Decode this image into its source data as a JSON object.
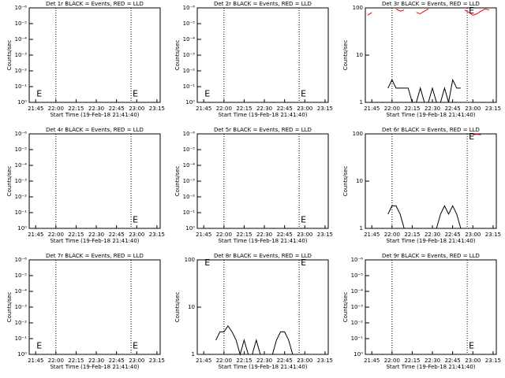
{
  "chart_data": [
    {
      "type": "line",
      "title": "Det 1r BLACK = Events, RED = LLD",
      "ylabel": "Counts/sec",
      "xlabel": "Start Time (19-Feb-18 21:41:40)",
      "xlim": [
        21.67,
        23.29
      ],
      "xticks": [
        {
          "value": 21.75,
          "label": "21:45"
        },
        {
          "value": 22,
          "label": "22:00"
        },
        {
          "value": 22.25,
          "label": "22:15"
        },
        {
          "value": 22.5,
          "label": "22:30"
        },
        {
          "value": 22.75,
          "label": "22:45"
        },
        {
          "value": 23,
          "label": "23:00"
        },
        {
          "value": 23.25,
          "label": "23:15"
        }
      ],
      "log_y": true,
      "ylim": [
        1,
        1e-06
      ],
      "yticks": [
        {
          "value": 1,
          "label": "10⁰"
        },
        {
          "value": 0.1,
          "label": "10⁻¹"
        },
        {
          "value": 0.01,
          "label": "10⁻²"
        },
        {
          "value": 0.001,
          "label": "10⁻³"
        },
        {
          "value": 0.0001,
          "label": "10⁻⁴"
        },
        {
          "value": 1e-05,
          "label": "10⁻⁵"
        },
        {
          "value": 1e-06,
          "label": "10⁻⁶"
        }
      ],
      "vlines": [
        22,
        22.93
      ],
      "annotations": [
        {
          "text": "E",
          "x": 21.76,
          "y": 0.3
        },
        {
          "text": "E",
          "x": 22.95,
          "y": 0.3
        }
      ]
    },
    {
      "type": "line",
      "title": "Det 2r BLACK = Events, RED = LLD",
      "ylabel": "Counts/sec",
      "xlabel": "Start Time (19-Feb-18 21:41:40)",
      "xlim": [
        21.67,
        23.29
      ],
      "xticks": [
        {
          "value": 21.75,
          "label": "21:45"
        },
        {
          "value": 22,
          "label": "22:00"
        },
        {
          "value": 22.25,
          "label": "22:15"
        },
        {
          "value": 22.5,
          "label": "22:30"
        },
        {
          "value": 22.75,
          "label": "22:45"
        },
        {
          "value": 23,
          "label": "23:00"
        },
        {
          "value": 23.25,
          "label": "23:15"
        }
      ],
      "log_y": true,
      "ylim": [
        1,
        1e-06
      ],
      "yticks": [
        {
          "value": 1,
          "label": "10⁰"
        },
        {
          "value": 0.1,
          "label": "10⁻¹"
        },
        {
          "value": 0.01,
          "label": "10⁻²"
        },
        {
          "value": 0.001,
          "label": "10⁻³"
        },
        {
          "value": 0.0001,
          "label": "10⁻⁴"
        },
        {
          "value": 1e-05,
          "label": "10⁻⁵"
        },
        {
          "value": 1e-06,
          "label": "10⁻⁶"
        }
      ],
      "vlines": [
        22,
        22.93
      ],
      "annotations": [
        {
          "text": "E",
          "x": 21.76,
          "y": 0.3
        },
        {
          "text": "E",
          "x": 22.95,
          "y": 0.3
        }
      ]
    },
    {
      "type": "line",
      "title": "Det 3r BLACK = Events, RED = LLD",
      "ylabel": "Counts/sec",
      "xlabel": "Start Time (19-Feb-18 21:41:40)",
      "xlim": [
        21.67,
        23.29
      ],
      "xticks": [
        {
          "value": 21.75,
          "label": "21:45"
        },
        {
          "value": 22,
          "label": "22:00"
        },
        {
          "value": 22.25,
          "label": "22:15"
        },
        {
          "value": 22.5,
          "label": "22:30"
        },
        {
          "value": 22.75,
          "label": "22:45"
        },
        {
          "value": 23,
          "label": "23:00"
        },
        {
          "value": 23.25,
          "label": "23:15"
        }
      ],
      "log_y": true,
      "ylim": [
        1,
        100
      ],
      "yticks": [
        1,
        10,
        100
      ],
      "vlines": [
        22,
        22.93
      ],
      "annotations": [
        {
          "text": "E",
          "x": 22.95,
          "y": 85
        }
      ],
      "x": [
        21.7,
        21.75,
        21.8,
        21.85,
        21.9,
        21.95,
        22,
        22.05,
        22.1,
        22.15,
        22.2,
        22.25,
        22.3,
        22.35,
        22.4,
        22.45,
        22.5,
        22.55,
        22.6,
        22.65,
        22.7,
        22.75,
        22.8,
        22.85,
        22.9,
        22.95,
        23,
        23.05,
        23.1,
        23.15,
        23.2,
        23.25
      ],
      "series": [
        {
          "name": "Events",
          "color": "#000000",
          "values": [
            null,
            null,
            null,
            null,
            null,
            2,
            3,
            2,
            2,
            2,
            2,
            1,
            1,
            2,
            1,
            1,
            2,
            1,
            1,
            2,
            1,
            3,
            2,
            2,
            null,
            null,
            null,
            null,
            null,
            null,
            null,
            null
          ]
        },
        {
          "name": "LLD",
          "color": "#ff0000",
          "values": [
            70,
            80,
            null,
            null,
            null,
            null,
            null,
            95,
            85,
            90,
            null,
            null,
            80,
            75,
            85,
            95,
            null,
            null,
            null,
            null,
            null,
            null,
            null,
            null,
            90,
            80,
            70,
            75,
            85,
            95,
            90,
            null
          ]
        }
      ]
    },
    {
      "type": "line",
      "title": "Det 4r BLACK = Events, RED = LLD",
      "ylabel": "Counts/sec",
      "xlabel": "Start Time (19-Feb-18 21:41:40)",
      "xlim": [
        21.67,
        23.29
      ],
      "xticks": [
        {
          "value": 21.75,
          "label": "21:45"
        },
        {
          "value": 22,
          "label": "22:00"
        },
        {
          "value": 22.25,
          "label": "22:15"
        },
        {
          "value": 22.5,
          "label": "22:30"
        },
        {
          "value": 22.75,
          "label": "22:45"
        },
        {
          "value": 23,
          "label": "23:00"
        },
        {
          "value": 23.25,
          "label": "23:15"
        }
      ],
      "log_y": true,
      "ylim": [
        1,
        1e-06
      ],
      "yticks": [
        {
          "value": 1,
          "label": "10⁰"
        },
        {
          "value": 0.1,
          "label": "10⁻¹"
        },
        {
          "value": 0.01,
          "label": "10⁻²"
        },
        {
          "value": 0.001,
          "label": "10⁻³"
        },
        {
          "value": 0.0001,
          "label": "10⁻⁴"
        },
        {
          "value": 1e-05,
          "label": "10⁻⁵"
        },
        {
          "value": 1e-06,
          "label": "10⁻⁶"
        }
      ],
      "vlines": [
        22,
        22.93
      ],
      "annotations": [
        {
          "text": "E",
          "x": 22.95,
          "y": 0.3
        }
      ]
    },
    {
      "type": "line",
      "title": "Det 5r BLACK = Events, RED = LLD",
      "ylabel": "Counts/sec",
      "xlabel": "Start Time (19-Feb-18 21:41:40)",
      "xlim": [
        21.67,
        23.29
      ],
      "xticks": [
        {
          "value": 21.75,
          "label": "21:45"
        },
        {
          "value": 22,
          "label": "22:00"
        },
        {
          "value": 22.25,
          "label": "22:15"
        },
        {
          "value": 22.5,
          "label": "22:30"
        },
        {
          "value": 22.75,
          "label": "22:45"
        },
        {
          "value": 23,
          "label": "23:00"
        },
        {
          "value": 23.25,
          "label": "23:15"
        }
      ],
      "log_y": true,
      "ylim": [
        1,
        1e-06
      ],
      "yticks": [
        {
          "value": 1,
          "label": "10⁰"
        },
        {
          "value": 0.1,
          "label": "10⁻¹"
        },
        {
          "value": 0.01,
          "label": "10⁻²"
        },
        {
          "value": 0.001,
          "label": "10⁻³"
        },
        {
          "value": 0.0001,
          "label": "10⁻⁴"
        },
        {
          "value": 1e-05,
          "label": "10⁻⁵"
        },
        {
          "value": 1e-06,
          "label": "10⁻⁶"
        }
      ],
      "vlines": [
        22,
        22.93
      ],
      "annotations": [
        {
          "text": "E",
          "x": 22.95,
          "y": 0.3
        }
      ]
    },
    {
      "type": "line",
      "title": "Det 6r BLACK = Events, RED = LLD",
      "ylabel": "Counts/sec",
      "xlabel": "Start Time (19-Feb-18 21:41:40)",
      "xlim": [
        21.67,
        23.29
      ],
      "xticks": [
        {
          "value": 21.75,
          "label": "21:45"
        },
        {
          "value": 22,
          "label": "22:00"
        },
        {
          "value": 22.25,
          "label": "22:15"
        },
        {
          "value": 22.5,
          "label": "22:30"
        },
        {
          "value": 22.75,
          "label": "22:45"
        },
        {
          "value": 23,
          "label": "23:00"
        },
        {
          "value": 23.25,
          "label": "23:15"
        }
      ],
      "log_y": true,
      "ylim": [
        1,
        100
      ],
      "yticks": [
        1,
        10,
        100
      ],
      "vlines": [
        22,
        22.93
      ],
      "annotations": [
        {
          "text": "E",
          "x": 22.95,
          "y": 85
        }
      ],
      "x": [
        21.7,
        21.75,
        21.8,
        21.85,
        21.9,
        21.95,
        22,
        22.05,
        22.1,
        22.15,
        22.2,
        22.25,
        22.3,
        22.35,
        22.4,
        22.45,
        22.5,
        22.55,
        22.6,
        22.65,
        22.7,
        22.75,
        22.8,
        22.85,
        22.9,
        22.95,
        23,
        23.05,
        23.1,
        23.15,
        23.2,
        23.25
      ],
      "series": [
        {
          "name": "Events",
          "color": "#000000",
          "values": [
            null,
            null,
            null,
            null,
            null,
            2,
            3,
            3,
            2,
            1,
            1,
            1,
            1,
            1,
            1,
            1,
            1,
            1,
            2,
            3,
            2,
            3,
            2,
            1,
            null,
            null,
            null,
            null,
            null,
            null,
            null,
            null
          ]
        },
        {
          "name": "LLD",
          "color": "#ff0000",
          "values": [
            null,
            null,
            null,
            null,
            null,
            null,
            null,
            null,
            null,
            null,
            null,
            null,
            null,
            null,
            null,
            null,
            null,
            null,
            null,
            null,
            null,
            null,
            null,
            null,
            null,
            null,
            95,
            98,
            95,
            null,
            null,
            null
          ]
        }
      ]
    },
    {
      "type": "line",
      "title": "Det 7r BLACK = Events, RED = LLD",
      "ylabel": "Counts/sec",
      "xlabel": "Start Time (19-Feb-18 21:41:40)",
      "xlim": [
        21.67,
        23.29
      ],
      "xticks": [
        {
          "value": 21.75,
          "label": "21:45"
        },
        {
          "value": 22,
          "label": "22:00"
        },
        {
          "value": 22.25,
          "label": "22:15"
        },
        {
          "value": 22.5,
          "label": "22:30"
        },
        {
          "value": 22.75,
          "label": "22:45"
        },
        {
          "value": 23,
          "label": "23:00"
        },
        {
          "value": 23.25,
          "label": "23:15"
        }
      ],
      "log_y": true,
      "ylim": [
        1,
        1e-06
      ],
      "yticks": [
        {
          "value": 1,
          "label": "10⁰"
        },
        {
          "value": 0.1,
          "label": "10⁻¹"
        },
        {
          "value": 0.01,
          "label": "10⁻²"
        },
        {
          "value": 0.001,
          "label": "10⁻³"
        },
        {
          "value": 0.0001,
          "label": "10⁻⁴"
        },
        {
          "value": 1e-05,
          "label": "10⁻⁵"
        },
        {
          "value": 1e-06,
          "label": "10⁻⁶"
        }
      ],
      "vlines": [
        22,
        22.93
      ],
      "annotations": [
        {
          "text": "E",
          "x": 21.76,
          "y": 0.3
        },
        {
          "text": "E",
          "x": 22.95,
          "y": 0.3
        }
      ]
    },
    {
      "type": "line",
      "title": "Det 8r BLACK = Events, RED = LLD",
      "ylabel": "Counts/sec",
      "xlabel": "Start Time (19-Feb-18 21:41:40)",
      "xlim": [
        21.67,
        23.29
      ],
      "xticks": [
        {
          "value": 21.75,
          "label": "21:45"
        },
        {
          "value": 22,
          "label": "22:00"
        },
        {
          "value": 22.25,
          "label": "22:15"
        },
        {
          "value": 22.5,
          "label": "22:30"
        },
        {
          "value": 22.75,
          "label": "22:45"
        },
        {
          "value": 23,
          "label": "23:00"
        },
        {
          "value": 23.25,
          "label": "23:15"
        }
      ],
      "log_y": true,
      "ylim": [
        1,
        100
      ],
      "yticks": [
        1,
        10,
        100
      ],
      "vlines": [
        22,
        22.93
      ],
      "annotations": [
        {
          "text": "E",
          "x": 21.76,
          "y": 85
        },
        {
          "text": "E",
          "x": 22.95,
          "y": 85
        }
      ],
      "x": [
        21.7,
        21.75,
        21.8,
        21.85,
        21.9,
        21.95,
        22,
        22.05,
        22.1,
        22.15,
        22.2,
        22.25,
        22.3,
        22.35,
        22.4,
        22.45,
        22.5,
        22.55,
        22.6,
        22.65,
        22.7,
        22.75,
        22.8,
        22.85,
        22.9,
        22.95,
        23,
        23.05,
        23.1,
        23.15,
        23.2,
        23.25
      ],
      "series": [
        {
          "name": "Events",
          "color": "#000000",
          "values": [
            null,
            null,
            null,
            null,
            2,
            3,
            3,
            4,
            3,
            2,
            1,
            2,
            1,
            1,
            2,
            1,
            1,
            1,
            1,
            2,
            3,
            3,
            2,
            1,
            1,
            null,
            null,
            null,
            null,
            null,
            null,
            null
          ]
        }
      ]
    },
    {
      "type": "line",
      "title": "Det 9r BLACK = Events, RED = LLD",
      "ylabel": "Counts/sec",
      "xlabel": "Start Time (19-Feb-18 21:41:40)",
      "xlim": [
        21.67,
        23.29
      ],
      "xticks": [
        {
          "value": 21.75,
          "label": "21:45"
        },
        {
          "value": 22,
          "label": "22:00"
        },
        {
          "value": 22.25,
          "label": "22:15"
        },
        {
          "value": 22.5,
          "label": "22:30"
        },
        {
          "value": 22.75,
          "label": "22:45"
        },
        {
          "value": 23,
          "label": "23:00"
        },
        {
          "value": 23.25,
          "label": "23:15"
        }
      ],
      "log_y": true,
      "ylim": [
        1,
        1e-06
      ],
      "yticks": [
        {
          "value": 1,
          "label": "10⁰"
        },
        {
          "value": 0.1,
          "label": "10⁻¹"
        },
        {
          "value": 0.01,
          "label": "10⁻²"
        },
        {
          "value": 0.001,
          "label": "10⁻³"
        },
        {
          "value": 0.0001,
          "label": "10⁻⁴"
        },
        {
          "value": 1e-05,
          "label": "10⁻⁵"
        },
        {
          "value": 1e-06,
          "label": "10⁻⁶"
        }
      ],
      "vlines": [
        22,
        22.93
      ],
      "annotations": [
        {
          "text": "E",
          "x": 22.95,
          "y": 0.3
        }
      ]
    }
  ]
}
